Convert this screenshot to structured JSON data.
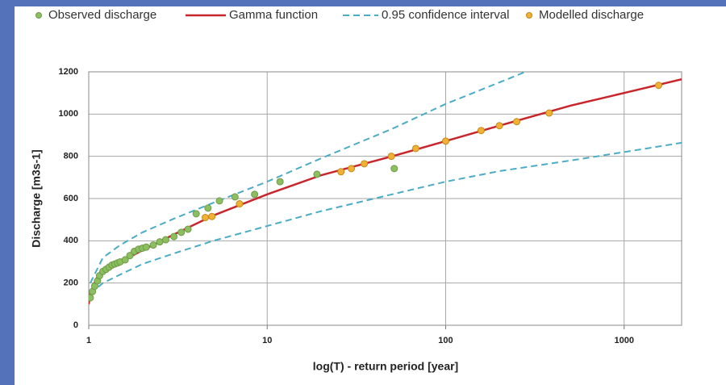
{
  "chart_data": {
    "type": "line",
    "x_label": "log(T) - return period [year]",
    "y_label": "Discharge [m3s-1]",
    "xlim": [
      1,
      2100
    ],
    "xlog": true,
    "xticks": [
      1,
      10,
      100,
      1000
    ],
    "ylim": [
      0,
      1200
    ],
    "yticks": [
      0,
      200,
      400,
      600,
      800,
      1000,
      1200
    ],
    "grid": true,
    "series": [
      {
        "name": "Observed discharge",
        "type": "scatter",
        "color": "#8cbf5f",
        "edge": "#6f9a48",
        "x": [
          1.02,
          1.05,
          1.08,
          1.12,
          1.15,
          1.2,
          1.25,
          1.3,
          1.35,
          1.4,
          1.45,
          1.5,
          1.6,
          1.7,
          1.8,
          1.9,
          2.0,
          2.1,
          2.3,
          2.5,
          2.7,
          3.0,
          3.3,
          3.6,
          4.0,
          4.66,
          5.4,
          6.6,
          8.5,
          11.8,
          19,
          51.5
        ],
        "values": [
          130,
          160,
          185,
          210,
          235,
          255,
          265,
          275,
          285,
          290,
          295,
          300,
          310,
          330,
          350,
          360,
          365,
          370,
          380,
          395,
          405,
          420,
          440,
          455,
          528,
          555,
          589,
          608,
          620,
          680,
          715,
          742
        ]
      },
      {
        "name": "Gamma function",
        "type": "line",
        "color": "#c8262c",
        "x": [
          1.0,
          1.02,
          1.1,
          1.2,
          1.5,
          2,
          3,
          5,
          10,
          20,
          50,
          100,
          200,
          500,
          1000,
          2100
        ],
        "values": [
          100,
          150,
          220,
          260,
          300,
          355,
          430,
          520,
          620,
          710,
          800,
          872,
          945,
          1040,
          1100,
          1165
        ]
      },
      {
        "name": "0.95 confidence interval",
        "type": "band",
        "color": "#4bacc6",
        "upper": {
          "x": [
            1.02,
            1.2,
            1.5,
            2,
            3,
            5,
            10,
            20,
            50,
            100,
            200,
            280
          ],
          "values": [
            200,
            320,
            380,
            440,
            505,
            580,
            680,
            790,
            930,
            1048,
            1150,
            1200
          ]
        },
        "lower": {
          "x": [
            1.02,
            1.2,
            1.5,
            2,
            3,
            5,
            10,
            20,
            50,
            100,
            200,
            500,
            1000,
            2100
          ],
          "values": [
            150,
            200,
            240,
            290,
            340,
            400,
            470,
            540,
            620,
            680,
            730,
            780,
            820,
            864
          ]
        }
      },
      {
        "name": "Modelled discharge",
        "type": "scatter",
        "color": "#f2b134",
        "edge": "#c08a1a",
        "x": [
          4.5,
          4.9,
          7.0,
          25.9,
          29.6,
          35,
          49.6,
          68,
          100,
          158,
          200,
          250,
          380,
          1560
        ],
        "values": [
          510,
          515,
          575,
          727,
          742,
          765,
          800,
          837,
          872,
          922,
          945,
          964,
          1005,
          1136
        ]
      }
    ]
  }
}
